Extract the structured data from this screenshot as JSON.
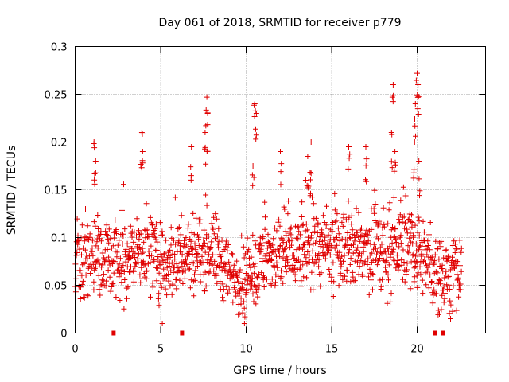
{
  "chart_data": {
    "type": "scatter",
    "title": "Day 061 of 2018, SRMTID for receiver p779",
    "xlabel": "GPS time / hours",
    "ylabel": "SRMTID / TECUs",
    "xlim": [
      0,
      24
    ],
    "ylim": [
      0,
      0.3
    ],
    "x_ticks": [
      0,
      5,
      10,
      15,
      20
    ],
    "x_tick_labels": [
      "0",
      "5",
      "10",
      "15",
      "20"
    ],
    "y_ticks": [
      0,
      0.05,
      0.1,
      0.15,
      0.2,
      0.25,
      0.3
    ],
    "y_tick_labels": [
      "0",
      "0.05",
      "0.1",
      "0.15",
      "0.2",
      "0.25",
      "0.3"
    ],
    "grid": true,
    "marker": "+",
    "series": [
      {
        "name": "SRMTID",
        "color": "#e00000",
        "x_range": [
          0,
          22.6
        ],
        "typical_range": [
          0.03,
          0.15
        ],
        "baseline": [
          [
            0,
            0.07
          ],
          [
            1,
            0.08
          ],
          [
            2,
            0.075
          ],
          [
            3,
            0.08
          ],
          [
            4,
            0.085
          ],
          [
            5,
            0.075
          ],
          [
            6,
            0.08
          ],
          [
            7,
            0.085
          ],
          [
            8,
            0.09
          ],
          [
            9,
            0.06
          ],
          [
            10,
            0.055
          ],
          [
            11,
            0.075
          ],
          [
            12,
            0.08
          ],
          [
            13,
            0.085
          ],
          [
            14,
            0.09
          ],
          [
            15,
            0.085
          ],
          [
            16,
            0.09
          ],
          [
            17,
            0.085
          ],
          [
            18,
            0.08
          ],
          [
            19,
            0.09
          ],
          [
            20,
            0.085
          ],
          [
            21,
            0.065
          ],
          [
            22,
            0.06
          ],
          [
            22.6,
            0.06
          ]
        ],
        "peaks": [
          [
            1.1,
            0.2
          ],
          [
            1.2,
            0.18
          ],
          [
            3.9,
            0.21
          ],
          [
            3.95,
            0.19
          ],
          [
            7.7,
            0.247
          ],
          [
            7.75,
            0.23
          ],
          [
            7.6,
            0.21
          ],
          [
            6.8,
            0.195
          ],
          [
            10.5,
            0.24
          ],
          [
            10.6,
            0.23
          ],
          [
            10.4,
            0.175
          ],
          [
            12.0,
            0.19
          ],
          [
            13.8,
            0.2
          ],
          [
            13.6,
            0.185
          ],
          [
            16.0,
            0.195
          ],
          [
            17.0,
            0.195
          ],
          [
            18.6,
            0.26
          ],
          [
            18.5,
            0.21
          ],
          [
            18.7,
            0.19
          ],
          [
            19.9,
            0.24
          ],
          [
            20.0,
            0.272
          ],
          [
            20.05,
            0.26
          ],
          [
            19.85,
            0.2
          ],
          [
            20.1,
            0.18
          ]
        ],
        "lows": [
          [
            5.1,
            0.01
          ],
          [
            9.9,
            0.01
          ],
          [
            9.6,
            0.02
          ],
          [
            21.3,
            0.02
          ]
        ]
      }
    ],
    "gap_markers_x": [
      2.25,
      6.25,
      21.05,
      21.5
    ]
  }
}
